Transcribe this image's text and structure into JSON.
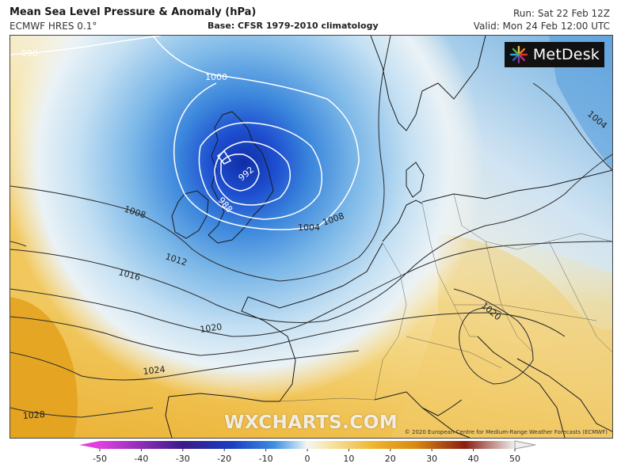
{
  "header": {
    "title": "Mean Sea Level Pressure & Anomaly (hPa)",
    "model": "ECMWF HRES 0.1°",
    "base": "Base: CFSR 1979-2010 climatology",
    "run": "Run: Sat 22 Feb 12Z",
    "valid": "Valid: Mon 24 Feb 12:00 UTC"
  },
  "logo": {
    "text": "MetDesk"
  },
  "watermark": "WXCHARTS.COM",
  "copyright": "© 2020 European Centre for Medium-Range Weather Forecasts (ECMWF)",
  "isobars": {
    "labels": [
      "996",
      "1000",
      "1004",
      "1008",
      "1012",
      "1016",
      "1020",
      "1024",
      "1028",
      "1004",
      "992",
      "988",
      "1008",
      "1020"
    ],
    "low_center_hpa": 988
  },
  "colorbar": {
    "ticks": [
      "-50",
      "-40",
      "-30",
      "-20",
      "-10",
      "0",
      "10",
      "20",
      "30",
      "40",
      "50"
    ],
    "colors": {
      "neg_extreme": "#e040e0",
      "neg_deep": "#3a1a8a",
      "neg_strong": "#1a3fc2",
      "neg_mid": "#3d8ee0",
      "neg_light": "#a8d2f0",
      "neutral": "#f6f6f0",
      "pos_light": "#f6e2a0",
      "pos_mid": "#eeb52e",
      "pos_strong": "#d98a12",
      "pos_deep": "#8a1d10",
      "pos_extreme": "#eeeeee"
    }
  }
}
